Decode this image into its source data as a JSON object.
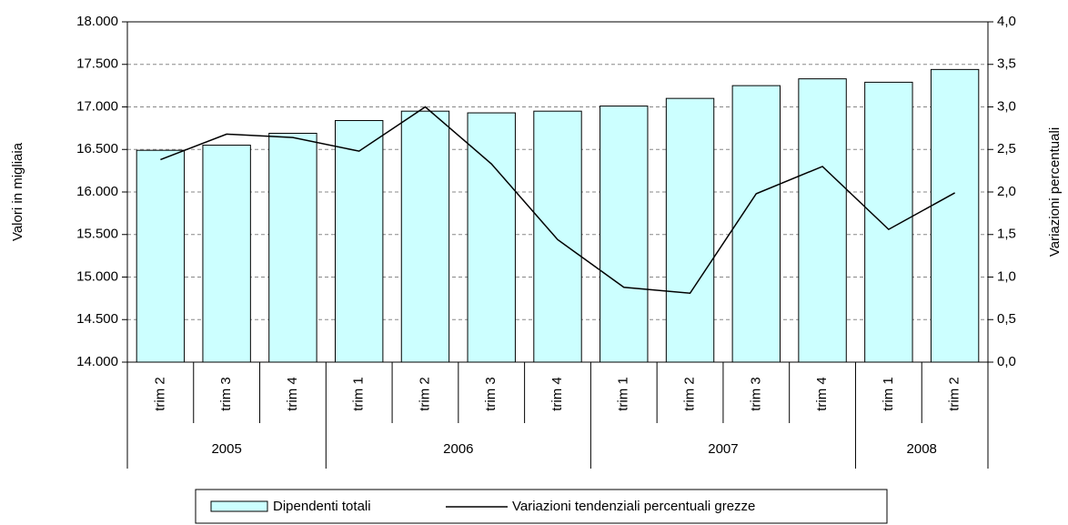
{
  "chart_data": {
    "type": "bar-line",
    "y_label": "Valori in migliaia",
    "y2_label": "Variazioni percentuali",
    "groups": [
      {
        "label": "2005",
        "categories": [
          "trim 2",
          "trim 3",
          "trim 4"
        ]
      },
      {
        "label": "2006",
        "categories": [
          "trim 1",
          "trim 2",
          "trim 3",
          "trim 4"
        ]
      },
      {
        "label": "2007",
        "categories": [
          "trim 1",
          "trim 2",
          "trim 3",
          "trim 4"
        ]
      },
      {
        "label": "2008",
        "categories": [
          "trim 1",
          "trim 2"
        ]
      }
    ],
    "series": [
      {
        "name": "Dipendenti totali",
        "type": "bar",
        "color": "#ccffff",
        "values": [
          16490,
          16550,
          16690,
          16840,
          16950,
          16930,
          16950,
          17010,
          17100,
          17250,
          17330,
          17290,
          17440
        ]
      },
      {
        "name": "Variazioni tendenziali percentuali grezze",
        "type": "line",
        "color": "#000000",
        "axis": "y2",
        "values": [
          2.38,
          2.68,
          2.64,
          2.48,
          3.0,
          2.33,
          1.44,
          0.88,
          0.81,
          1.98,
          2.3,
          1.56,
          1.99
        ]
      }
    ],
    "ylim": [
      14000,
      18000
    ],
    "yticks": [
      {
        "value": 14000,
        "label": "14.000"
      },
      {
        "value": 14500,
        "label": "14.500"
      },
      {
        "value": 15000,
        "label": "15.000"
      },
      {
        "value": 15500,
        "label": "15.500"
      },
      {
        "value": 16000,
        "label": "16.000"
      },
      {
        "value": 16500,
        "label": "16.500"
      },
      {
        "value": 17000,
        "label": "17.000"
      },
      {
        "value": 17500,
        "label": "17.500"
      },
      {
        "value": 18000,
        "label": "18.000"
      }
    ],
    "y2lim": [
      0,
      4
    ],
    "y2ticks": [
      {
        "value": 0,
        "label": "0,0"
      },
      {
        "value": 0.5,
        "label": "0,5"
      },
      {
        "value": 1,
        "label": "1,0"
      },
      {
        "value": 1.5,
        "label": "1,5"
      },
      {
        "value": 2,
        "label": "2,0"
      },
      {
        "value": 2.5,
        "label": "2,5"
      },
      {
        "value": 3,
        "label": "3,0"
      },
      {
        "value": 3.5,
        "label": "3,5"
      },
      {
        "value": 4,
        "label": "4,0"
      }
    ],
    "grid": true,
    "legend": "bottom"
  }
}
